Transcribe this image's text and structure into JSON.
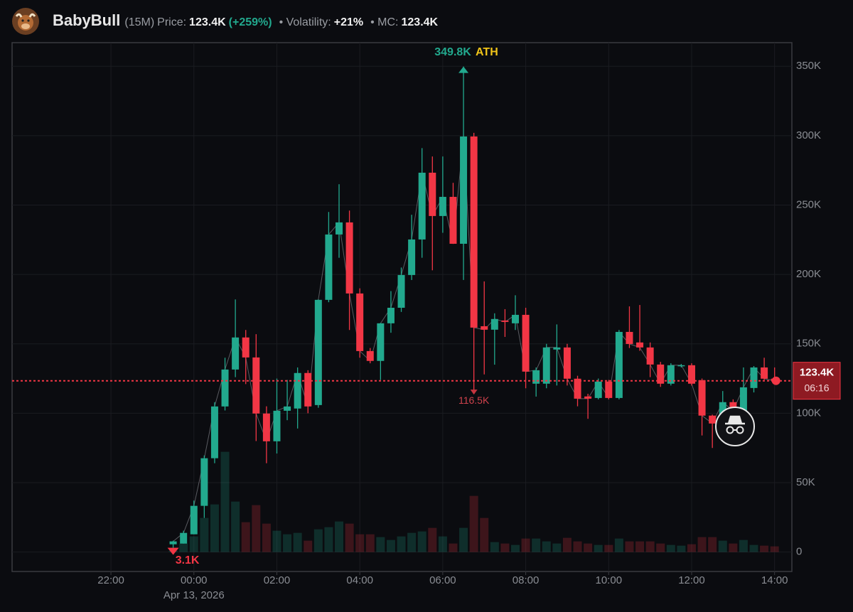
{
  "header": {
    "name": "BabyBull",
    "interval": "(15M)",
    "price_label": "Price:",
    "price": "123.4K",
    "change": "(+259%)",
    "volatility_label": "• Volatility:",
    "volatility": "+21%",
    "mc_label": "• MC:",
    "mc": "123.4K"
  },
  "chart_data": {
    "type": "candlestick",
    "x": [
      "2026-04-12T23:30",
      "2026-04-12T23:45",
      "2026-04-13T00:00",
      "2026-04-13T00:15",
      "2026-04-13T00:30",
      "2026-04-13T00:45",
      "2026-04-13T01:00",
      "2026-04-13T01:15",
      "2026-04-13T01:30",
      "2026-04-13T01:45",
      "2026-04-13T02:00",
      "2026-04-13T02:15",
      "2026-04-13T02:30",
      "2026-04-13T02:45",
      "2026-04-13T03:00",
      "2026-04-13T03:15",
      "2026-04-13T03:30",
      "2026-04-13T03:45",
      "2026-04-13T04:00",
      "2026-04-13T04:15",
      "2026-04-13T04:30",
      "2026-04-13T04:45",
      "2026-04-13T05:00",
      "2026-04-13T05:15",
      "2026-04-13T05:30",
      "2026-04-13T05:45",
      "2026-04-13T06:00",
      "2026-04-13T06:15",
      "2026-04-13T06:30",
      "2026-04-13T06:45",
      "2026-04-13T07:00",
      "2026-04-13T07:15",
      "2026-04-13T07:30",
      "2026-04-13T07:45",
      "2026-04-13T08:00",
      "2026-04-13T08:15",
      "2026-04-13T08:30",
      "2026-04-13T08:45",
      "2026-04-13T09:00",
      "2026-04-13T09:15",
      "2026-04-13T09:30",
      "2026-04-13T09:45",
      "2026-04-13T10:00",
      "2026-04-13T10:15",
      "2026-04-13T10:30",
      "2026-04-13T10:45",
      "2026-04-13T11:00",
      "2026-04-13T11:15",
      "2026-04-13T11:30",
      "2026-04-13T11:45",
      "2026-04-13T12:00",
      "2026-04-13T12:15",
      "2026-04-13T12:30",
      "2026-04-13T12:45",
      "2026-04-13T13:00",
      "2026-04-13T13:15",
      "2026-04-13T13:30",
      "2026-04-13T13:45",
      "2026-04-13T14:00"
    ],
    "open": [
      5600,
      6100,
      12800,
      33300,
      67600,
      104900,
      131500,
      154600,
      140200,
      99800,
      79800,
      101800,
      103400,
      129000,
      105900,
      181700,
      228800,
      237500,
      186300,
      144800,
      137700,
      164800,
      176000,
      199600,
      225200,
      273300,
      242100,
      255900,
      222100,
      299400,
      162700,
      160200,
      166800,
      164800,
      170900,
      121300,
      121300,
      145900,
      147400,
      124900,
      112100,
      111000,
      122800,
      111000,
      158600,
      151000,
      147400,
      135100,
      121300,
      134100,
      134600,
      123800,
      98300,
      92600,
      108000,
      101800,
      118200,
      133000,
      124900
    ],
    "high": [
      8200,
      15400,
      37100,
      69600,
      108000,
      140000,
      182000,
      160000,
      157000,
      105000,
      125000,
      124000,
      133000,
      131000,
      182000,
      245000,
      265000,
      246000,
      190000,
      147000,
      165000,
      188000,
      205000,
      243000,
      291000,
      285000,
      285000,
      266000,
      349800,
      302000,
      195000,
      172000,
      175000,
      185000,
      176000,
      133000,
      150000,
      164000,
      150000,
      127000,
      114000,
      125000,
      124000,
      160000,
      177000,
      178000,
      151000,
      137000,
      136000,
      135500,
      136000,
      125000,
      99000,
      116000,
      110000,
      133000,
      134000,
      140000,
      133000
    ],
    "low": [
      3100,
      6100,
      12800,
      24600,
      64000,
      102000,
      126000,
      121000,
      80000,
      64000,
      71000,
      95000,
      89000,
      100000,
      104000,
      180000,
      212000,
      160000,
      140000,
      136000,
      124000,
      158000,
      173000,
      196000,
      212000,
      203000,
      230000,
      222000,
      196000,
      116500,
      128000,
      135000,
      155000,
      160000,
      118000,
      112000,
      118000,
      120000,
      120000,
      105000,
      96000,
      110000,
      110000,
      110000,
      147000,
      145000,
      126000,
      119000,
      120000,
      133000,
      120000,
      84000,
      75000,
      90000,
      90000,
      100000,
      115000,
      124000,
      123000
    ],
    "close": [
      7700,
      13800,
      33300,
      67600,
      104900,
      131500,
      154600,
      140200,
      99800,
      79800,
      101800,
      104900,
      129000,
      104900,
      181700,
      228800,
      237500,
      186300,
      144800,
      137700,
      164800,
      176000,
      199600,
      225200,
      273300,
      242100,
      255900,
      222100,
      299400,
      161700,
      160200,
      167900,
      165800,
      170900,
      130000,
      131000,
      147400,
      147400,
      124900,
      110500,
      110500,
      122800,
      111000,
      158600,
      149900,
      147400,
      135100,
      121300,
      134600,
      134600,
      121300,
      98300,
      92600,
      108000,
      101800,
      118700,
      133000,
      124900,
      123400
    ],
    "volume": [
      2,
      12,
      22,
      48,
      67,
      141,
      71,
      42,
      66,
      40,
      30,
      25,
      27,
      16,
      32,
      35,
      43,
      40,
      25,
      25,
      21,
      17,
      22,
      27,
      29,
      34,
      22,
      12,
      34,
      79,
      48,
      14,
      12,
      10,
      19,
      19,
      15,
      12,
      20,
      15,
      12,
      10,
      10,
      19,
      15,
      15,
      15,
      12,
      10,
      9,
      11,
      21,
      21,
      16,
      12,
      17,
      10,
      9,
      8
    ],
    "volume_lim": [
      0,
      300
    ],
    "xlim": [
      "2026-04-12T19:37",
      "2026-04-13T14:25"
    ],
    "xticks": [
      {
        "value": "2026-04-12T22:00",
        "label": "22:00"
      },
      {
        "value": "2026-04-13T00:00",
        "label": "00:00"
      },
      {
        "value": "2026-04-13T02:00",
        "label": "02:00"
      },
      {
        "value": "2026-04-13T04:00",
        "label": "04:00"
      },
      {
        "value": "2026-04-13T06:00",
        "label": "06:00"
      },
      {
        "value": "2026-04-13T08:00",
        "label": "08:00"
      },
      {
        "value": "2026-04-13T10:00",
        "label": "10:00"
      },
      {
        "value": "2026-04-13T12:00",
        "label": "12:00"
      },
      {
        "value": "2026-04-13T14:00",
        "label": "14:00"
      }
    ],
    "x_date_label": {
      "value": "2026-04-13T00:00",
      "label": "Apr 13, 2026"
    },
    "ylim": [
      -14000,
      367000
    ],
    "yticks": [
      0,
      {
        "value": 50000,
        "label": "50K"
      },
      {
        "value": 100000,
        "label": "100K"
      },
      {
        "value": 150000,
        "label": "150K"
      },
      {
        "value": 200000,
        "label": "200K"
      },
      {
        "value": 250000,
        "label": "250K"
      },
      {
        "value": 300000,
        "label": "300K"
      },
      {
        "value": 350000,
        "label": "350K"
      }
    ],
    "grid": true,
    "up_color": "#22a98e",
    "down_color": "#f23645",
    "close_line_color": "#8d9096",
    "price_line": {
      "value": 123400,
      "label": "123.4K",
      "countdown": "06:16",
      "color": "#f23645"
    },
    "max_marker": {
      "x": "2026-04-13T06:30",
      "value": 349800,
      "label": "349.8K",
      "tag": "ATH",
      "tag_color": "#f0c419"
    },
    "min_markers": [
      {
        "x": "2026-04-13T06:45",
        "value": 116500,
        "label": "116.5K"
      },
      {
        "x": "2026-04-12T23:30",
        "value": 3100,
        "label": "3.1K"
      }
    ]
  }
}
